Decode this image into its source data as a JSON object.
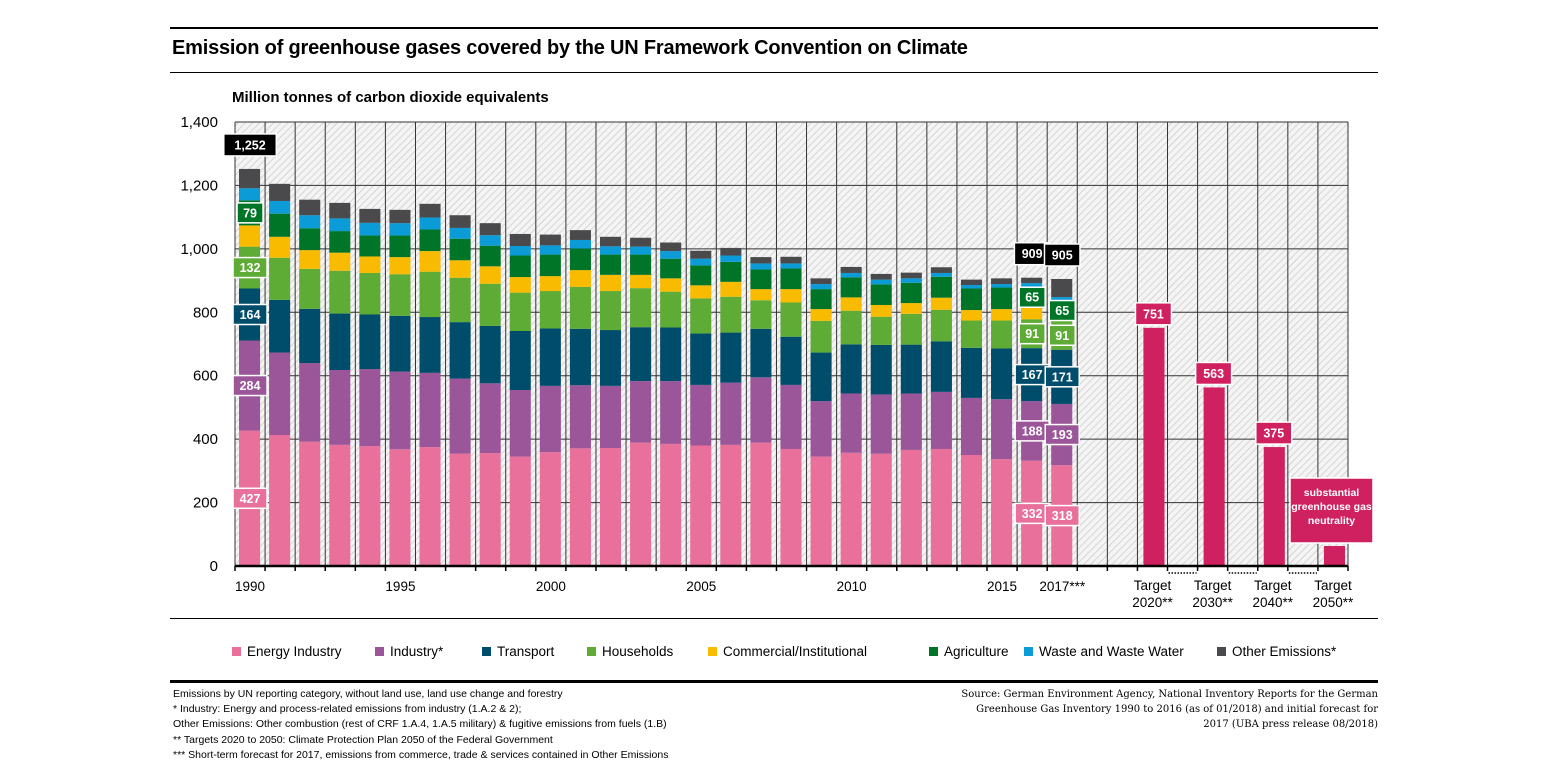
{
  "title": "Emission of greenhouse gases covered by the UN Framework Convention on Climate",
  "notes": [
    "Emissions by UN reporting category, without land use, land use change and forestry",
    "* Industry: Energy and process-related emissions from industry (1.A.2 & 2);",
    "Other Emissions: Other combustion (rest of CRF 1.A.4, 1.A.5 military) & fugitive emissions from fuels (1.B)",
    "** Targets 2020 to 2050: Climate Protection Plan 2050 of the Federal Government",
    "*** Short-term forecast for 2017, emissions from commerce, trade & services contained in Other Emissions"
  ],
  "source": [
    "Source: German Environment Agency, National Inventory Reports for the German",
    "Greenhouse Gas Inventory 1990 to 2016 (as of 01/2018) and initial forecast for",
    "2017 (UBA press release 08/2018)"
  ],
  "chart_data": {
    "type": "bar",
    "stacked": true,
    "title": "Emission of greenhouse gases covered by the UN Framework Convention on Climate",
    "ylabel": "Million tonnes of carbon dioxide equivalents",
    "xlabel": "",
    "ylim": [
      0,
      1400
    ],
    "yticks": [
      "0",
      "200",
      "400",
      "600",
      "800",
      "1,000",
      "1,200",
      "1,400"
    ],
    "grid": true,
    "legend_position": "bottom",
    "categories": [
      "1990",
      "1991",
      "1992",
      "1993",
      "1994",
      "1995",
      "1996",
      "1997",
      "1998",
      "1999",
      "2000",
      "2001",
      "2002",
      "2003",
      "2004",
      "2005",
      "2006",
      "2007",
      "2008",
      "2009",
      "2010",
      "2011",
      "2012",
      "2013",
      "2014",
      "2015",
      "2016",
      "2017***"
    ],
    "xtick_labels": {
      "1990": "1990",
      "1995": "1995",
      "2000": "2000",
      "2005": "2005",
      "2010": "2010",
      "2015": "2015",
      "2017***": "2017***"
    },
    "series": [
      {
        "name": "Energy Industry",
        "color": "#e8709a",
        "values": [
          427,
          413,
          392,
          382,
          378,
          368,
          375,
          354,
          356,
          345,
          359,
          371,
          372,
          389,
          385,
          380,
          382,
          389,
          369,
          345,
          357,
          354,
          366,
          369,
          350,
          337,
          332,
          318
        ]
      },
      {
        "name": "Industry*",
        "color": "#9b5699",
        "values": [
          284,
          260,
          248,
          236,
          243,
          245,
          234,
          237,
          220,
          210,
          209,
          199,
          196,
          194,
          198,
          191,
          196,
          206,
          202,
          175,
          187,
          187,
          178,
          180,
          180,
          189,
          188,
          193
        ]
      },
      {
        "name": "Transport",
        "color": "#004c6b",
        "values": [
          164,
          166,
          171,
          178,
          172,
          176,
          176,
          178,
          181,
          186,
          181,
          178,
          176,
          170,
          169,
          162,
          158,
          153,
          152,
          153,
          155,
          156,
          154,
          159,
          158,
          160,
          167,
          171
        ]
      },
      {
        "name": "Households",
        "color": "#5eab36",
        "values": [
          132,
          133,
          126,
          135,
          131,
          131,
          143,
          140,
          133,
          121,
          118,
          132,
          123,
          123,
          113,
          111,
          113,
          90,
          108,
          100,
          106,
          89,
          97,
          100,
          86,
          88,
          91,
          91
        ]
      },
      {
        "name": "Commercial/Institutional",
        "color": "#f9bb00",
        "values": [
          67,
          66,
          59,
          57,
          52,
          54,
          65,
          55,
          55,
          49,
          47,
          53,
          51,
          42,
          42,
          41,
          47,
          35,
          42,
          37,
          42,
          37,
          34,
          38,
          33,
          36,
          37,
          0
        ]
      },
      {
        "name": "Agriculture",
        "color": "#007527",
        "values": [
          79,
          73,
          69,
          68,
          66,
          68,
          68,
          68,
          65,
          68,
          68,
          68,
          64,
          64,
          62,
          63,
          63,
          62,
          65,
          63,
          63,
          65,
          64,
          66,
          68,
          68,
          65,
          65
        ]
      },
      {
        "name": "Waste and Waste Water",
        "color": "#0b9bd7",
        "values": [
          38,
          40,
          41,
          40,
          40,
          39,
          38,
          34,
          33,
          30,
          29,
          27,
          26,
          25,
          24,
          21,
          20,
          19,
          16,
          16,
          14,
          15,
          14,
          12,
          11,
          11,
          12,
          10
        ]
      },
      {
        "name": "Other Emissions*",
        "color": "#4a4a4c",
        "values": [
          61,
          54,
          49,
          49,
          44,
          42,
          43,
          40,
          38,
          38,
          34,
          31,
          30,
          28,
          27,
          25,
          24,
          20,
          21,
          18,
          19,
          18,
          18,
          18,
          17,
          18,
          17,
          57
        ]
      }
    ],
    "value_labels": [
      {
        "category": "1990",
        "total": "1,252",
        "segments": {
          "Energy Industry": "427",
          "Industry*": "284",
          "Transport": "164",
          "Households": "132",
          "Agriculture": "79"
        }
      },
      {
        "category": "2016",
        "total": "909",
        "segments": {
          "Energy Industry": "332",
          "Industry*": "188",
          "Transport": "167",
          "Households": "91",
          "Agriculture": "65"
        }
      },
      {
        "category": "2017***",
        "total": "905",
        "segments": {
          "Energy Industry": "318",
          "Industry*": "193",
          "Transport": "171",
          "Households": "91",
          "Agriculture": "65"
        }
      }
    ],
    "targets": {
      "color": "#cf2060",
      "items": [
        {
          "label_line1": "Target",
          "label_line2": "2020**",
          "value": 751,
          "value_label": "751"
        },
        {
          "label_line1": "Target",
          "label_line2": "2030**",
          "value": 563,
          "value_label": "563"
        },
        {
          "label_line1": "Target",
          "label_line2": "2040**",
          "value": 375,
          "value_label": "375"
        },
        {
          "label_line1": "Target",
          "label_line2": "2050**",
          "value": 63,
          "value_label": "substantial greenhouse gas neutrality"
        }
      ]
    }
  }
}
